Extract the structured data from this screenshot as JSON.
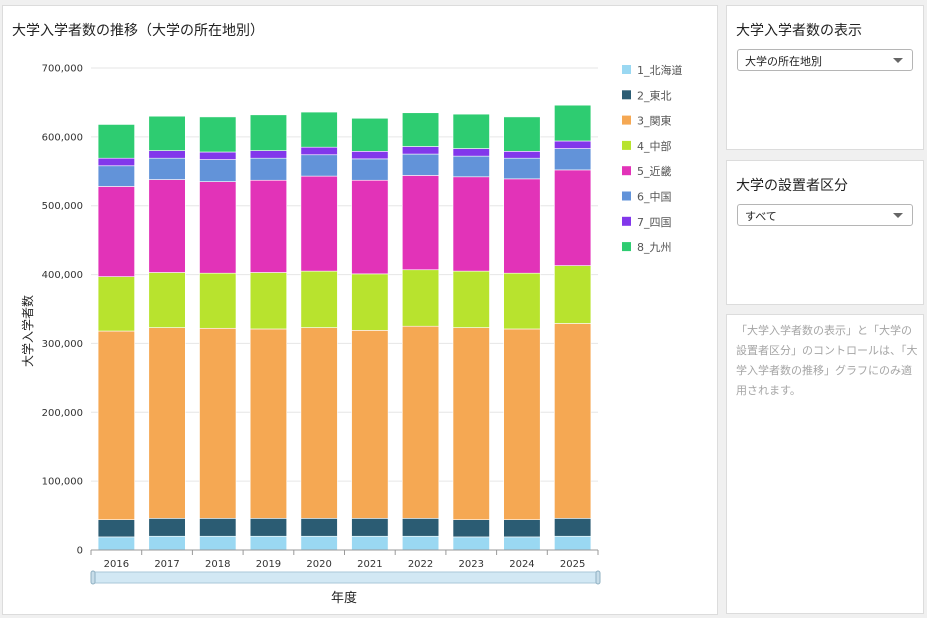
{
  "chart_panel": {
    "title": "大学入学者数の推移（大学の所在地別）"
  },
  "display_control": {
    "title": "大学入学者数の表示",
    "selected": "大学の所在地別"
  },
  "type_control": {
    "title": "大学の設置者区分",
    "selected": "すべて"
  },
  "note": {
    "text": "「大学入学者数の表示」と「大学の設置者区分」のコントロールは、「大学入学者数の推移」グラフにのみ適用されます。"
  },
  "chart_data": {
    "type": "bar",
    "stacked": true,
    "title": "",
    "xlabel": "年度",
    "ylabel": "大学入学者数",
    "ylim": [
      0,
      700000
    ],
    "yticks": [
      "0",
      "100,000",
      "200,000",
      "300,000",
      "400,000",
      "500,000",
      "600,000",
      "700,000"
    ],
    "grid": true,
    "legend_position": "right",
    "categories": [
      "2016",
      "2017",
      "2018",
      "2019",
      "2020",
      "2021",
      "2022",
      "2023",
      "2024",
      "2025"
    ],
    "series": [
      {
        "name": "1_北海道",
        "color": "#9ad8f2",
        "values": [
          19000,
          20000,
          20000,
          20000,
          20000,
          20000,
          20000,
          19000,
          19000,
          20000
        ]
      },
      {
        "name": "2_東北",
        "color": "#2b5c73",
        "values": [
          25000,
          26000,
          26000,
          26000,
          26000,
          26000,
          26000,
          25000,
          25000,
          26000
        ]
      },
      {
        "name": "3_関東",
        "color": "#f5a853",
        "values": [
          274000,
          277000,
          276000,
          275000,
          277000,
          273000,
          279000,
          279000,
          277000,
          283000
        ]
      },
      {
        "name": "4_中部",
        "color": "#b8e32e",
        "values": [
          79000,
          80000,
          80000,
          82000,
          82000,
          82000,
          82000,
          82000,
          81000,
          84000
        ]
      },
      {
        "name": "5_近畿",
        "color": "#e233b8",
        "values": [
          131000,
          135000,
          133000,
          134000,
          138000,
          136000,
          137000,
          137000,
          137000,
          139000
        ]
      },
      {
        "name": "6_中国",
        "color": "#6293d9",
        "values": [
          30000,
          31000,
          32000,
          32000,
          31000,
          31000,
          31000,
          30000,
          30000,
          31000
        ]
      },
      {
        "name": "7_四国",
        "color": "#8237eb",
        "values": [
          11000,
          11000,
          11000,
          11000,
          11000,
          11000,
          11000,
          11000,
          10000,
          11000
        ]
      },
      {
        "name": "8_九州",
        "color": "#2ecc71",
        "values": [
          49000,
          50000,
          51000,
          52000,
          51000,
          48000,
          49000,
          50000,
          50000,
          52000
        ]
      }
    ]
  }
}
